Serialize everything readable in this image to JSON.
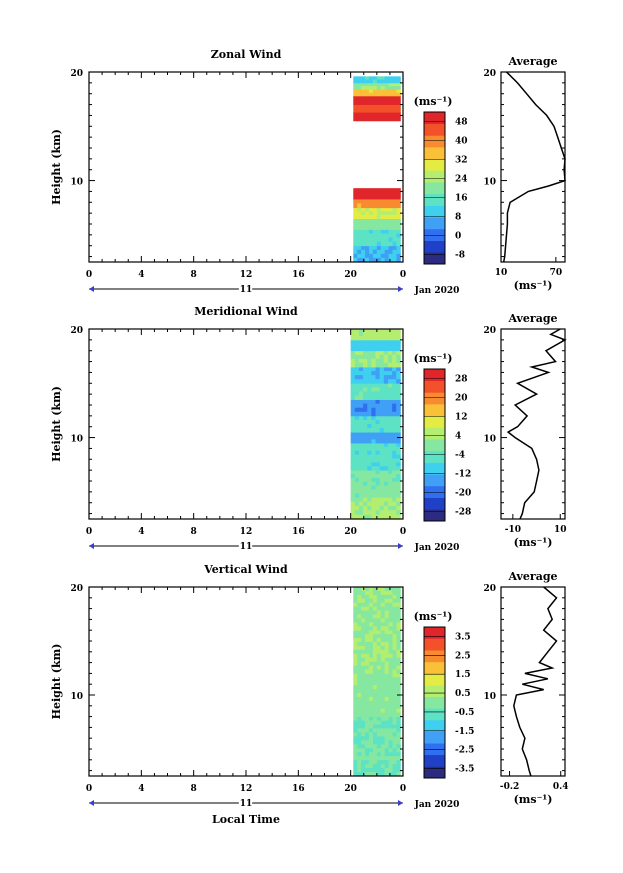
{
  "chart_data": [
    {
      "type": "heatmap",
      "title": "Zonal Wind",
      "ylabel": "Height (km)",
      "xlabel": "",
      "xlim": [
        0,
        24
      ],
      "ylim": [
        2.5,
        20
      ],
      "x_ticks": [
        "0",
        "4",
        "8",
        "12",
        "16",
        "20",
        "0"
      ],
      "y_ticks": [
        "10",
        "20"
      ],
      "date_label": "11",
      "month_label": "Jan 2020",
      "data_x_range": [
        20.2,
        23.8
      ],
      "colorbar": {
        "unit": "(ms⁻¹)",
        "ticks": [
          "48",
          "40",
          "32",
          "24",
          "16",
          "8",
          "0",
          "-8"
        ],
        "range": [
          -12,
          52
        ]
      },
      "field_bands": [
        {
          "y0": 2.5,
          "y1": 4.0,
          "value": 8
        },
        {
          "y0": 4.0,
          "y1": 5.5,
          "value": 14
        },
        {
          "y0": 5.5,
          "y1": 6.5,
          "value": 20
        },
        {
          "y0": 6.5,
          "y1": 7.5,
          "value": 28
        },
        {
          "y0": 7.5,
          "y1": 8.3,
          "value": 38
        },
        {
          "y0": 8.3,
          "y1": 9.3,
          "value": 50
        },
        {
          "y0": 15.5,
          "y1": 16.3,
          "value": 50
        },
        {
          "y0": 16.3,
          "y1": 17.0,
          "value": 44
        },
        {
          "y0": 17.0,
          "y1": 17.8,
          "value": 50
        },
        {
          "y0": 17.8,
          "y1": 18.4,
          "value": 34
        },
        {
          "y0": 18.4,
          "y1": 19.0,
          "value": 22
        },
        {
          "y0": 19.0,
          "y1": 19.6,
          "value": 12
        }
      ],
      "average_profile": {
        "title": "Average",
        "xlabel": "(ms⁻¹)",
        "xlim": [
          10,
          80
        ],
        "x_ticks": [
          "10",
          "70"
        ],
        "y_ticks": [
          "10",
          "20"
        ],
        "height_km": [
          2.5,
          3,
          4,
          5,
          6,
          7,
          8,
          9,
          9.5,
          10,
          11,
          12,
          13,
          14,
          15,
          16,
          17,
          18,
          19,
          20
        ],
        "value": [
          13,
          14,
          15,
          16,
          17,
          17,
          20,
          40,
          62,
          80,
          79,
          80,
          76,
          72,
          68,
          60,
          48,
          38,
          28,
          16
        ]
      }
    },
    {
      "type": "heatmap",
      "title": "Meridional Wind",
      "ylabel": "Height (km)",
      "xlabel": "",
      "xlim": [
        0,
        24
      ],
      "ylim": [
        2.5,
        20
      ],
      "x_ticks": [
        "0",
        "4",
        "8",
        "12",
        "16",
        "20",
        "0"
      ],
      "y_ticks": [
        "10",
        "20"
      ],
      "date_label": "11",
      "month_label": "Jan 2020",
      "data_x_range": [
        20.0,
        23.8
      ],
      "colorbar": {
        "unit": "(ms⁻¹)",
        "ticks": [
          "28",
          "20",
          "12",
          "4",
          "-4",
          "-12",
          "-20",
          "-28"
        ],
        "range": [
          -32,
          32
        ]
      },
      "field_bands": [
        {
          "y0": 2.5,
          "y1": 4.5,
          "value": 3
        },
        {
          "y0": 4.5,
          "y1": 7.0,
          "value": -1
        },
        {
          "y0": 7.0,
          "y1": 9.5,
          "value": -6
        },
        {
          "y0": 9.5,
          "y1": 10.5,
          "value": -14
        },
        {
          "y0": 10.5,
          "y1": 12.0,
          "value": -6
        },
        {
          "y0": 12.0,
          "y1": 13.5,
          "value": -16
        },
        {
          "y0": 13.5,
          "y1": 15.0,
          "value": -4
        },
        {
          "y0": 15.0,
          "y1": 16.5,
          "value": -12
        },
        {
          "y0": 16.5,
          "y1": 18.0,
          "value": 2
        },
        {
          "y0": 18.0,
          "y1": 19.0,
          "value": -10
        },
        {
          "y0": 19.0,
          "y1": 20.0,
          "value": 4
        }
      ],
      "average_profile": {
        "title": "Average",
        "xlabel": "(ms⁻¹)",
        "xlim": [
          -15,
          12
        ],
        "x_ticks": [
          "-10",
          "10"
        ],
        "y_ticks": [
          "10",
          "20"
        ],
        "height_km": [
          2.5,
          3,
          4,
          5,
          6,
          7,
          8,
          9,
          10,
          10.5,
          11,
          12,
          13,
          14,
          15,
          16,
          16.5,
          17,
          18,
          19,
          19.5,
          20
        ],
        "value": [
          -7,
          -6,
          -5,
          -1,
          0,
          1,
          0,
          -2,
          -9,
          -12,
          -8,
          -4,
          -9,
          0,
          -8,
          5,
          -2,
          8,
          4,
          12,
          6,
          10
        ]
      }
    },
    {
      "type": "heatmap",
      "title": "Vertical Wind",
      "ylabel": "Height (km)",
      "xlabel": "Local Time",
      "xlim": [
        0,
        24
      ],
      "ylim": [
        2.5,
        20
      ],
      "x_ticks": [
        "0",
        "4",
        "8",
        "12",
        "16",
        "20",
        "0"
      ],
      "y_ticks": [
        "10",
        "20"
      ],
      "date_label": "11",
      "month_label": "Jan 2020",
      "data_x_range": [
        20.2,
        23.8
      ],
      "colorbar": {
        "unit": "(ms⁻¹)",
        "ticks": [
          "3.5",
          "2.5",
          "1.5",
          "0.5",
          "-0.5",
          "-1.5",
          "-2.5",
          "-3.5"
        ],
        "range": [
          -4,
          4
        ]
      },
      "field_bands": [
        {
          "y0": 2.5,
          "y1": 8.0,
          "value": -0.3
        },
        {
          "y0": 8.0,
          "y1": 12.0,
          "value": 0.1
        },
        {
          "y0": 12.0,
          "y1": 16.0,
          "value": 0.3
        },
        {
          "y0": 16.0,
          "y1": 20.0,
          "value": 0.2
        }
      ],
      "average_profile": {
        "title": "Average",
        "xlabel": "(ms⁻¹)",
        "xlim": [
          -0.3,
          0.45
        ],
        "x_ticks": [
          "-0.2",
          "0.4"
        ],
        "y_ticks": [
          "10",
          "20"
        ],
        "height_km": [
          2.5,
          3,
          4,
          5,
          6,
          7,
          8,
          9,
          10,
          10.5,
          11,
          11.5,
          12,
          12.5,
          13,
          14,
          15,
          16,
          17,
          18,
          19,
          20
        ],
        "value": [
          0.05,
          0.03,
          0.0,
          -0.05,
          -0.02,
          -0.08,
          -0.12,
          -0.15,
          -0.12,
          0.2,
          -0.05,
          0.25,
          -0.02,
          0.3,
          0.15,
          0.25,
          0.35,
          0.2,
          0.3,
          0.25,
          0.35,
          0.2
        ]
      }
    }
  ]
}
